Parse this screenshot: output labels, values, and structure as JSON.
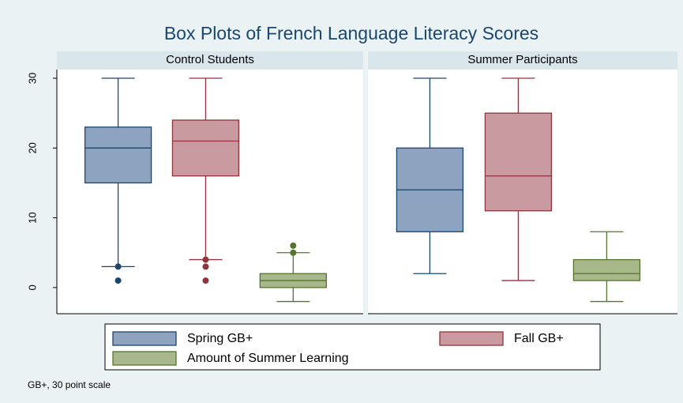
{
  "chart_data": {
    "type": "box",
    "title": "Box Plots of French Language Literacy Scores",
    "note": "GB+, 30 point scale",
    "ylim": [
      -3.75,
      31.25
    ],
    "yticks": [
      0,
      10,
      20,
      30
    ],
    "legend": "bottom",
    "series": [
      {
        "name": "Spring GB+",
        "color": "#8da3bf",
        "edge": "#1a476f"
      },
      {
        "name": "Fall GB+",
        "color": "#c99aa0",
        "edge": "#90353b"
      },
      {
        "name": "Amount of Summer Learning",
        "color": "#a8b88a",
        "edge": "#55752f"
      }
    ],
    "panels": [
      {
        "title": "Control Students",
        "boxes": [
          {
            "min": 3,
            "q1": 15,
            "median": 20,
            "q3": 23,
            "max": 30,
            "outliers": [
              3,
              1
            ]
          },
          {
            "min": 4,
            "q1": 16,
            "median": 21,
            "q3": 24,
            "max": 30,
            "outliers": [
              4,
              3,
              1
            ]
          },
          {
            "min": -2,
            "q1": 0,
            "median": 1,
            "q3": 2,
            "max": 5,
            "outliers": [
              5,
              6
            ]
          }
        ]
      },
      {
        "title": "Summer Participants",
        "boxes": [
          {
            "min": 2,
            "q1": 8,
            "median": 14,
            "q3": 20,
            "max": 30,
            "outliers": []
          },
          {
            "min": 1,
            "q1": 11,
            "median": 16,
            "q3": 25,
            "max": 30,
            "outliers": []
          },
          {
            "min": -2,
            "q1": 1,
            "median": 2,
            "q3": 4,
            "max": 8,
            "outliers": []
          }
        ]
      }
    ]
  }
}
